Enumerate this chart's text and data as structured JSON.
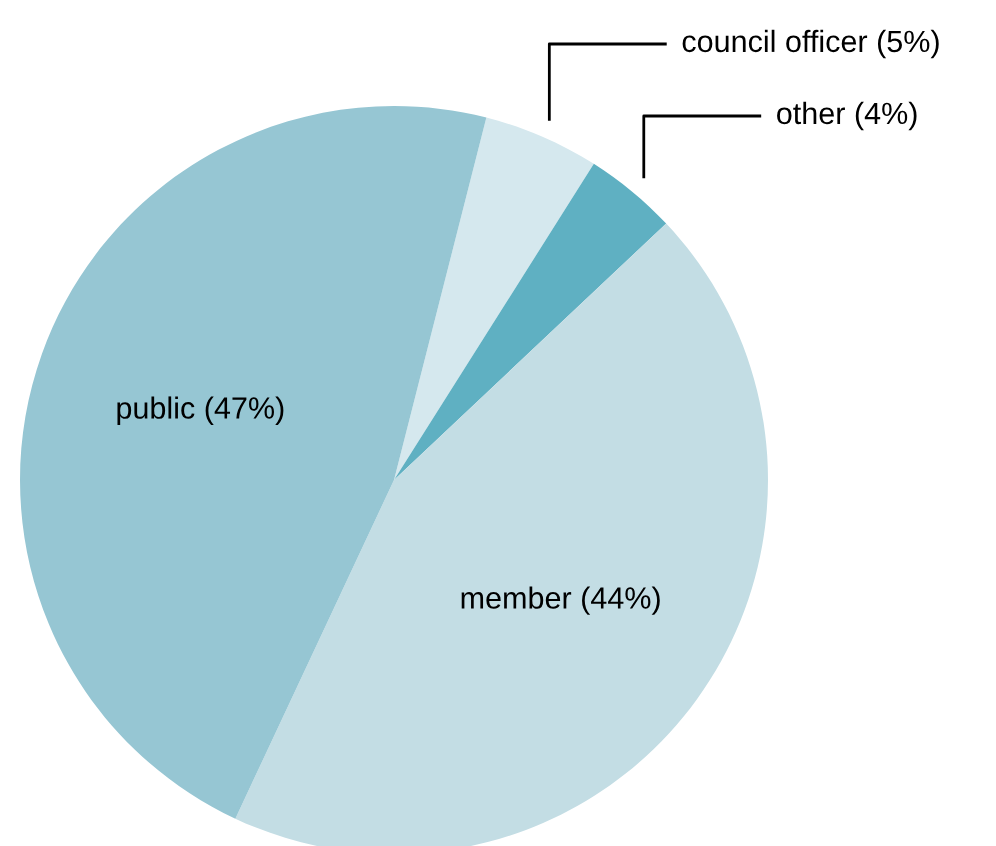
{
  "chart_data": {
    "type": "pie",
    "categories": [
      "council officer",
      "other",
      "member",
      "public"
    ],
    "values": [
      5,
      4,
      44,
      47
    ],
    "value_labels": [
      "(5%)",
      "(4%)",
      "(44%)",
      "(47%)"
    ],
    "colors": [
      "#d5e8ee",
      "#5fb0c2",
      "#c3dde4",
      "#96c6d3"
    ]
  }
}
